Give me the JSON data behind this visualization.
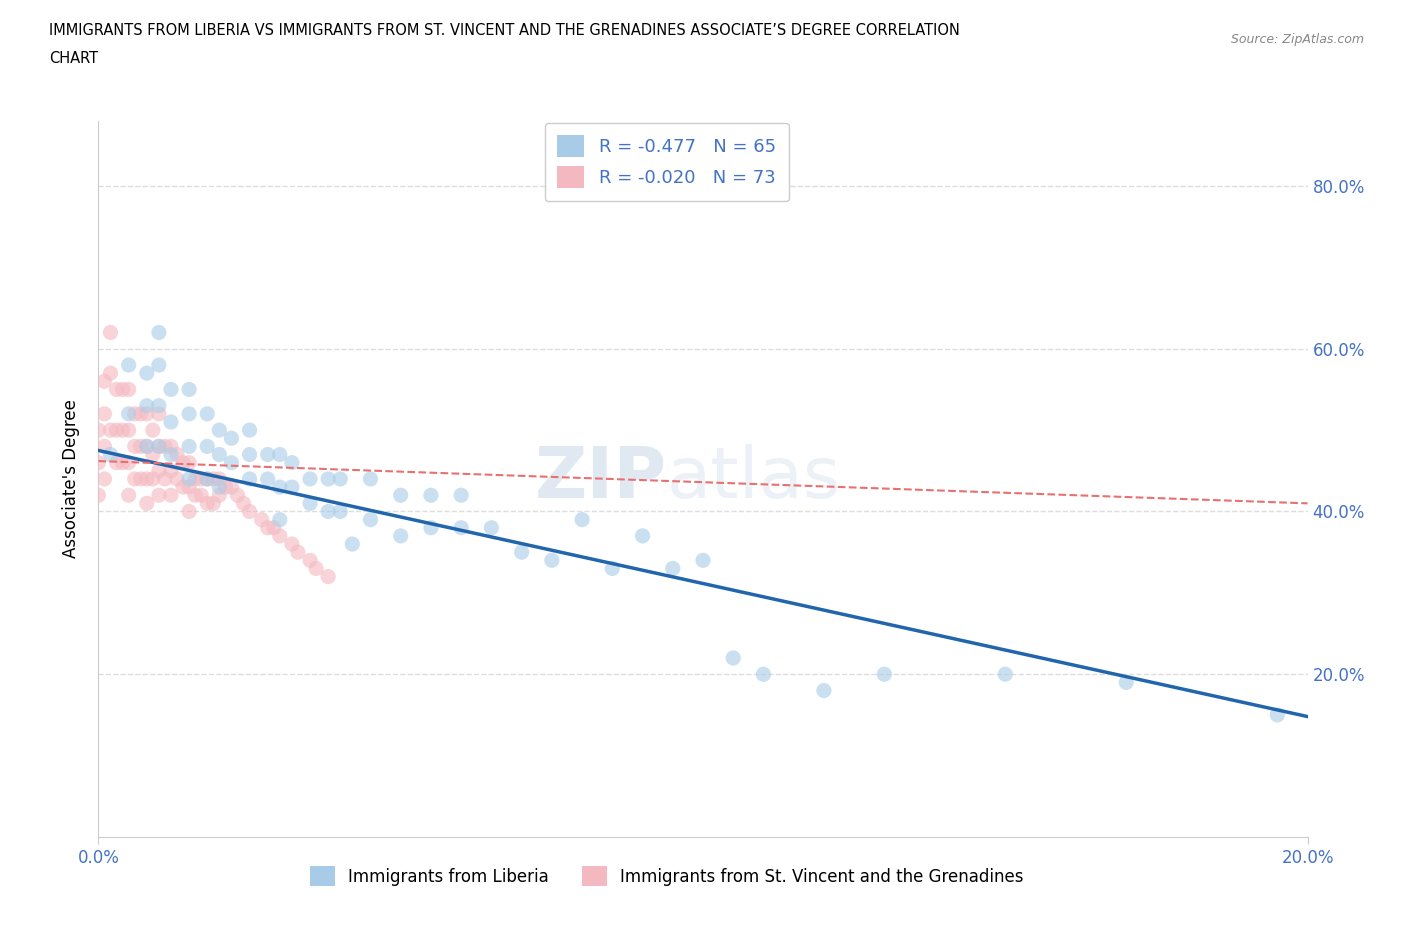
{
  "title_line1": "IMMIGRANTS FROM LIBERIA VS IMMIGRANTS FROM ST. VINCENT AND THE GRENADINES ASSOCIATE’S DEGREE CORRELATION",
  "title_line2": "CHART",
  "source_text": "Source: ZipAtlas.com",
  "ylabel": "Associate's Degree",
  "xlim": [
    0.0,
    0.2
  ],
  "ylim": [
    0.0,
    0.88
  ],
  "xtick_labels": [
    "0.0%",
    "20.0%"
  ],
  "ytick_labels": [
    "20.0%",
    "40.0%",
    "60.0%",
    "80.0%"
  ],
  "ytick_vals": [
    0.2,
    0.4,
    0.6,
    0.8
  ],
  "xtick_vals": [
    0.0,
    0.2
  ],
  "watermark_zip": "ZIP",
  "watermark_atlas": "atlas",
  "color_liberia": "#a8cce8",
  "color_stvincent": "#f4b8c1",
  "trendline_liberia_color": "#2166ac",
  "trendline_stvincent_color": "#e87070",
  "trendline_stvincent_style": "--",
  "grid_color": "#dddddd",
  "grid_linestyle": "--",
  "background_color": "#ffffff",
  "dot_size": 120,
  "dot_alpha": 0.6,
  "liberia_x": [
    0.002,
    0.005,
    0.005,
    0.008,
    0.008,
    0.008,
    0.01,
    0.01,
    0.01,
    0.01,
    0.012,
    0.012,
    0.012,
    0.015,
    0.015,
    0.015,
    0.015,
    0.018,
    0.018,
    0.018,
    0.02,
    0.02,
    0.02,
    0.022,
    0.022,
    0.025,
    0.025,
    0.025,
    0.028,
    0.028,
    0.03,
    0.03,
    0.03,
    0.032,
    0.032,
    0.035,
    0.035,
    0.038,
    0.038,
    0.04,
    0.04,
    0.042,
    0.045,
    0.045,
    0.05,
    0.05,
    0.055,
    0.055,
    0.06,
    0.06,
    0.065,
    0.07,
    0.075,
    0.08,
    0.085,
    0.09,
    0.095,
    0.1,
    0.105,
    0.11,
    0.12,
    0.13,
    0.15,
    0.17,
    0.195
  ],
  "liberia_y": [
    0.47,
    0.58,
    0.52,
    0.57,
    0.53,
    0.48,
    0.62,
    0.58,
    0.53,
    0.48,
    0.55,
    0.51,
    0.47,
    0.55,
    0.52,
    0.48,
    0.44,
    0.52,
    0.48,
    0.44,
    0.5,
    0.47,
    0.43,
    0.49,
    0.46,
    0.5,
    0.47,
    0.44,
    0.47,
    0.44,
    0.47,
    0.43,
    0.39,
    0.46,
    0.43,
    0.44,
    0.41,
    0.44,
    0.4,
    0.44,
    0.4,
    0.36,
    0.44,
    0.39,
    0.42,
    0.37,
    0.42,
    0.38,
    0.42,
    0.38,
    0.38,
    0.35,
    0.34,
    0.39,
    0.33,
    0.37,
    0.33,
    0.34,
    0.22,
    0.2,
    0.18,
    0.2,
    0.2,
    0.19,
    0.15
  ],
  "stvincent_x": [
    0.0,
    0.0,
    0.0,
    0.001,
    0.001,
    0.001,
    0.001,
    0.002,
    0.002,
    0.002,
    0.003,
    0.003,
    0.003,
    0.004,
    0.004,
    0.004,
    0.005,
    0.005,
    0.005,
    0.005,
    0.006,
    0.006,
    0.006,
    0.007,
    0.007,
    0.007,
    0.008,
    0.008,
    0.008,
    0.008,
    0.009,
    0.009,
    0.009,
    0.01,
    0.01,
    0.01,
    0.01,
    0.011,
    0.011,
    0.012,
    0.012,
    0.012,
    0.013,
    0.013,
    0.014,
    0.014,
    0.015,
    0.015,
    0.015,
    0.016,
    0.016,
    0.017,
    0.017,
    0.018,
    0.018,
    0.019,
    0.019,
    0.02,
    0.02,
    0.021,
    0.022,
    0.023,
    0.024,
    0.025,
    0.027,
    0.028,
    0.029,
    0.03,
    0.032,
    0.033,
    0.035,
    0.036,
    0.038
  ],
  "stvincent_y": [
    0.5,
    0.46,
    0.42,
    0.56,
    0.52,
    0.48,
    0.44,
    0.62,
    0.57,
    0.5,
    0.55,
    0.5,
    0.46,
    0.55,
    0.5,
    0.46,
    0.55,
    0.5,
    0.46,
    0.42,
    0.52,
    0.48,
    0.44,
    0.52,
    0.48,
    0.44,
    0.52,
    0.48,
    0.44,
    0.41,
    0.5,
    0.47,
    0.44,
    0.52,
    0.48,
    0.45,
    0.42,
    0.48,
    0.44,
    0.48,
    0.45,
    0.42,
    0.47,
    0.44,
    0.46,
    0.43,
    0.46,
    0.43,
    0.4,
    0.44,
    0.42,
    0.44,
    0.42,
    0.44,
    0.41,
    0.44,
    0.41,
    0.44,
    0.42,
    0.43,
    0.43,
    0.42,
    0.41,
    0.4,
    0.39,
    0.38,
    0.38,
    0.37,
    0.36,
    0.35,
    0.34,
    0.33,
    0.32
  ],
  "trendline_liberia_x0": 0.0,
  "trendline_liberia_y0": 0.475,
  "trendline_liberia_x1": 0.2,
  "trendline_liberia_y1": 0.148,
  "trendline_stvincent_x0": 0.0,
  "trendline_stvincent_y0": 0.462,
  "trendline_stvincent_x1": 0.2,
  "trendline_stvincent_y1": 0.41
}
